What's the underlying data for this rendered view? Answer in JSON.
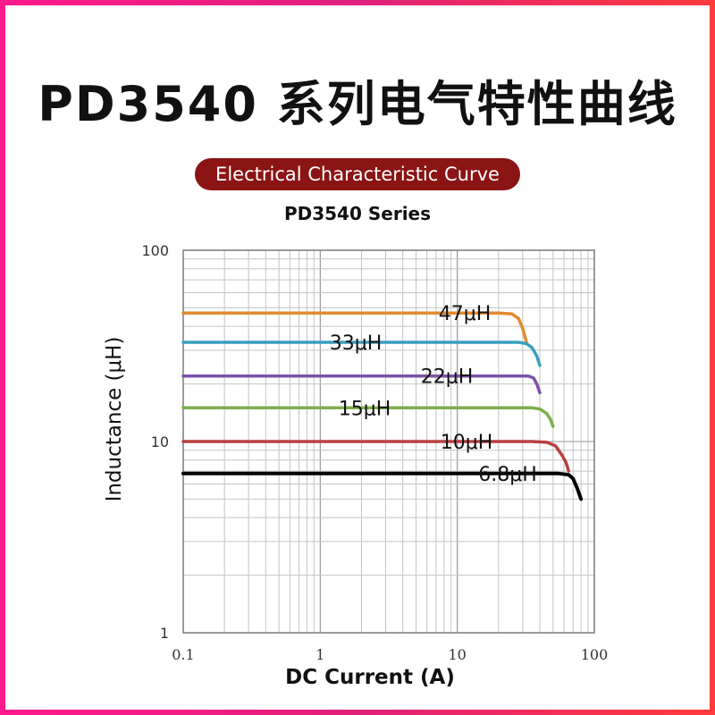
{
  "header": {
    "title": "PD3540 系列电气特性曲线",
    "banner": "Electrical Characteristic Curve"
  },
  "chart_data": {
    "type": "line",
    "title": "PD3540 Series",
    "xlabel": "DC Current (A)",
    "ylabel": "Inductance (μH)",
    "x_scale": "log",
    "y_scale": "log",
    "xlim": [
      0.1,
      100
    ],
    "ylim": [
      1,
      100
    ],
    "x_ticks": [
      "0.1",
      "1",
      "10",
      "100"
    ],
    "y_ticks": [
      "1",
      "10",
      "100"
    ],
    "grid": true,
    "series": [
      {
        "name": "47μH",
        "color": "#e08a30",
        "x": [
          0.1,
          20,
          25,
          28,
          30,
          32
        ],
        "y": [
          47,
          47,
          46.5,
          44,
          39,
          33
        ]
      },
      {
        "name": "33μH",
        "color": "#3a9fc0",
        "x": [
          0.1,
          28,
          32,
          35,
          38,
          40
        ],
        "y": [
          33,
          33,
          32.5,
          31,
          28,
          25
        ]
      },
      {
        "name": "22μH",
        "color": "#7b52a8",
        "x": [
          0.1,
          33,
          36,
          38,
          40
        ],
        "y": [
          22,
          22,
          21.5,
          20,
          18
        ]
      },
      {
        "name": "15μH",
        "color": "#7daf4a",
        "x": [
          0.1,
          35,
          40,
          45,
          48,
          50
        ],
        "y": [
          15,
          15,
          14.8,
          14,
          13,
          12
        ]
      },
      {
        "name": "10μH",
        "color": "#b84040",
        "x": [
          0.1,
          35,
          45,
          52,
          58,
          62,
          65
        ],
        "y": [
          10,
          10,
          9.9,
          9.5,
          8.5,
          7.8,
          7
        ]
      },
      {
        "name": "6.8μH",
        "color": "#000000",
        "x": [
          0.1,
          55,
          65,
          70,
          75,
          80
        ],
        "y": [
          6.8,
          6.8,
          6.7,
          6.4,
          5.7,
          5
        ]
      }
    ]
  }
}
